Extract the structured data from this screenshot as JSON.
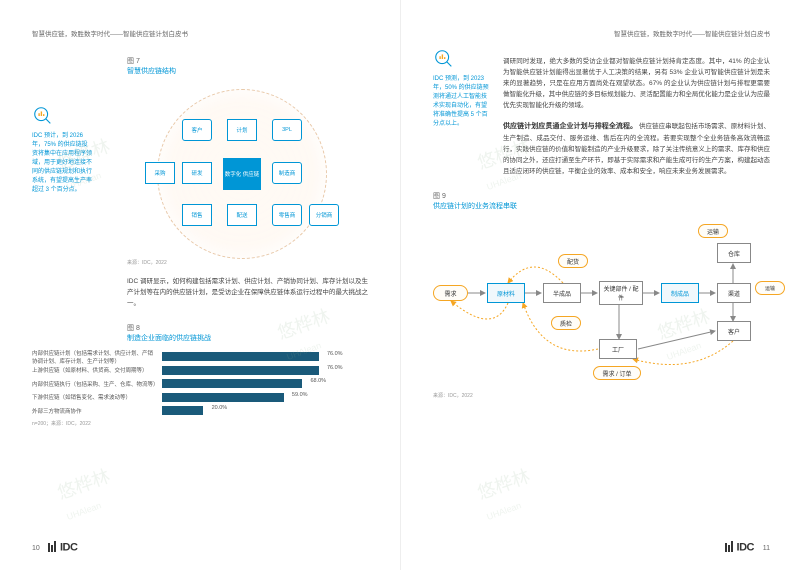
{
  "doc": {
    "header_text": "智慧供应链，致胜数字时代——智能供应链计划白皮书",
    "watermark_cn": "悠桦林",
    "watermark_en": "UHAlean"
  },
  "page_left": {
    "number": "10",
    "fig7": {
      "label": "图 7",
      "title": "智慧供应链结构",
      "center": "数字化\n供应链",
      "nodes": {
        "customer": "客户",
        "plan": "计划",
        "tpl": "3PL",
        "rd": "研发",
        "mfg": "制造商",
        "sales": "销售",
        "dist": "配送",
        "retail": "零售商",
        "source": "采购",
        "dc": "分销商"
      },
      "source": "来源：IDC，2022"
    },
    "sidebar": {
      "text": "IDC 预计，到 2026 年，75% 的供应链投资将集中在应用程序领域，用于更好地连接不同的供应链规划和执行系统，有望提高生产率超过 3 个百分点。"
    },
    "mid_text": "IDC 调研显示，如何构建包括需求计划、供应计划、产销协同计划、库存计划以及生产计划等在内的供应链计划，是受访企业在保障供应链体系运行过程中的最大挑战之一。",
    "fig8": {
      "label": "图 8",
      "title": "制造企业面临的供应链挑战",
      "bars": [
        {
          "label": "内部供应链计划（包括需求计划、供应计划、产销协调计划、库存计划、生产计划等）",
          "value": 76.0,
          "display": "76.0%"
        },
        {
          "label": "上游供应链（如原材料、供货商、交付周期等）",
          "value": 76.0,
          "display": "76.0%"
        },
        {
          "label": "内部供应链执行（包括采购、生产、仓库、物流等）",
          "value": 68.0,
          "display": "68.0%"
        },
        {
          "label": "下游供应链（如销售变化、需求波动等）",
          "value": 59.0,
          "display": "59.0%"
        },
        {
          "label": "外部三方物流商协作",
          "value": 20.0,
          "display": "20.0%"
        }
      ],
      "note": "n=200；来源：IDC，2022",
      "bar_color": "#1a5a7a",
      "max": 100
    }
  },
  "page_right": {
    "number": "11",
    "sidebar": {
      "text": "IDC 预测，到 2023 年，50% 的供应链预测将通过人工智能技术实现自动化，有望将准确性提高 5 个百分点以上。"
    },
    "para1": "调研同时发现，绝大多数的受访企业都对智能供应链计划持肯定态度。其中，41% 的企业认为智能供应链计划能得出显著优于人工决策的结果，另有 53% 企业认可智能供应链计划是未来的显著趋势，只是在应用方面尚处在观望状态。67% 的企业认为供应链计划与排程更需要做智能化升级，其中供应链的多目标规划能力、灵活配置能力和全局优化能力是企业认为应最优先实现智能化升级的领域。",
    "heading": "供应链计划应贯通企业计划与排程全流程。",
    "para2": "供应链应串联起包括市场需求、原材料计划、生产制造、成品交付、服务运维、售后在内的全流程。若要实现整个全业务链条高效流畅运行，实践供应链的价值和智能制造的产业升级要求，除了关注传统意义上的需求、库存和供应的协同之外，还应打通至生产环节，即基于实际需求和产能生成可行的生产方案，构建起动态且适应闭环的供应链，平衡企业的效率、成本和安全，响应未来业务发展需求。",
    "fig9": {
      "label": "图 9",
      "title": "供应链计划的业务流程串联",
      "source": "来源：IDC，2022",
      "nodes": {
        "demand": "需求",
        "rawmat": "原材料",
        "semi": "半成品",
        "keypart": "关键部件 / 配件",
        "finished": "制成品",
        "channel": "渠道",
        "warehouse": "仓库",
        "customer": "客户",
        "factory": "工厂",
        "transport": "运输",
        "transport2": "运输",
        "dispatch": "配货",
        "qc": "质检",
        "demand_order": "需求 / 订单"
      }
    }
  },
  "logo": "IDC"
}
